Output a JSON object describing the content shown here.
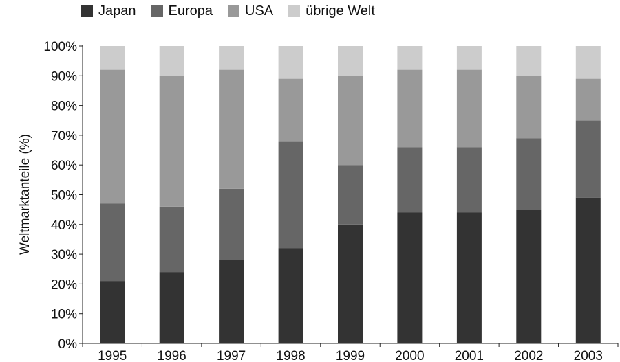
{
  "chart_data": {
    "type": "bar",
    "stacked": true,
    "categories": [
      "1995",
      "1996",
      "1997",
      "1998",
      "1999",
      "2000",
      "2001",
      "2002",
      "2003"
    ],
    "series": [
      {
        "name": "Japan",
        "color": "#333333",
        "values": [
          21,
          24,
          28,
          32,
          40,
          44,
          44,
          45,
          49
        ]
      },
      {
        "name": "Europa",
        "color": "#666666",
        "values": [
          26,
          22,
          24,
          36,
          20,
          22,
          22,
          24,
          26
        ]
      },
      {
        "name": "USA",
        "color": "#999999",
        "values": [
          45,
          44,
          40,
          21,
          30,
          26,
          26,
          21,
          14
        ]
      },
      {
        "name": "übrige Welt",
        "color": "#cccccc",
        "values": [
          8,
          10,
          8,
          11,
          10,
          8,
          8,
          10,
          11
        ]
      }
    ],
    "yticks": [
      "0%",
      "10%",
      "20%",
      "30%",
      "40%",
      "50%",
      "60%",
      "70%",
      "80%",
      "90%",
      "100%"
    ],
    "ylim": [
      0,
      100
    ],
    "ylabel": "Weltmarktanteile (%)",
    "xlabel": "",
    "title": "",
    "grid": false,
    "legend_position": "top-left"
  }
}
